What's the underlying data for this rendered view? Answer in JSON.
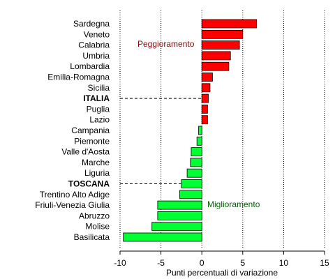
{
  "chart_data": {
    "type": "bar",
    "orientation": "horizontal",
    "title": "",
    "xlabel": "Punti percentuali di variazione",
    "ylabel": "",
    "xlim": [
      -10,
      15
    ],
    "xticks": [
      -10,
      -5,
      0,
      5,
      10,
      15
    ],
    "grid": "vertical dotted",
    "categories": [
      "Sardegna",
      "Veneto",
      "Calabria",
      "Umbria",
      "Lombardia",
      "Emilia-Romagna",
      "Sicilia",
      "ITALIA",
      "Puglia",
      "Lazio",
      "Campania",
      "Piemonte",
      "Valle d'Aosta",
      "Marche",
      "Liguria",
      "TOSCANA",
      "Trentino Alto Adige",
      "Friuli-Venezia Giulia",
      "Abruzzo",
      "Molise",
      "Basilicata"
    ],
    "values": [
      6.7,
      5.0,
      4.6,
      3.5,
      3.3,
      1.3,
      1.0,
      0.8,
      0.7,
      0.7,
      -0.4,
      -0.6,
      -1.3,
      -1.4,
      -1.8,
      -2.5,
      -2.7,
      -5.4,
      -5.4,
      -6.1,
      -9.6
    ],
    "highlighted": [
      "ITALIA",
      "TOSCANA"
    ],
    "annotations": {
      "positive": "Peggioramento",
      "negative": "Miglioramento"
    },
    "colors": {
      "positive": "#ff0000",
      "negative": "#00ff33",
      "positive_text": "#8b0000",
      "negative_text": "#006400",
      "bar_stroke": "#000000"
    }
  }
}
